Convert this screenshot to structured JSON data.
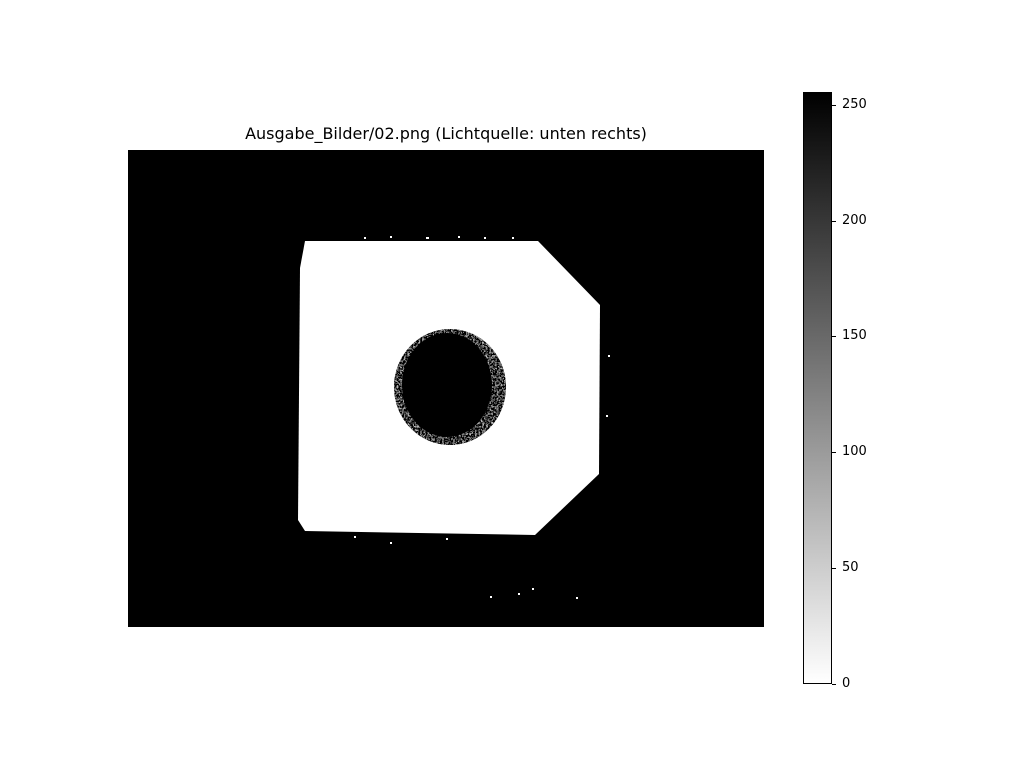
{
  "figure": {
    "title": "Ausgabe_Bilder/02.png (Lichtquelle: unten rechts)"
  },
  "image": {
    "colormap": "gray_r",
    "background_color": "#000000",
    "foreground_color": "#ffffff"
  },
  "colorbar": {
    "range": [
      0,
      255
    ],
    "ticks": [
      {
        "value": 0,
        "label": "0"
      },
      {
        "value": 50,
        "label": "50"
      },
      {
        "value": 100,
        "label": "100"
      },
      {
        "value": 150,
        "label": "150"
      },
      {
        "value": 200,
        "label": "200"
      },
      {
        "value": 250,
        "label": "250"
      }
    ]
  }
}
